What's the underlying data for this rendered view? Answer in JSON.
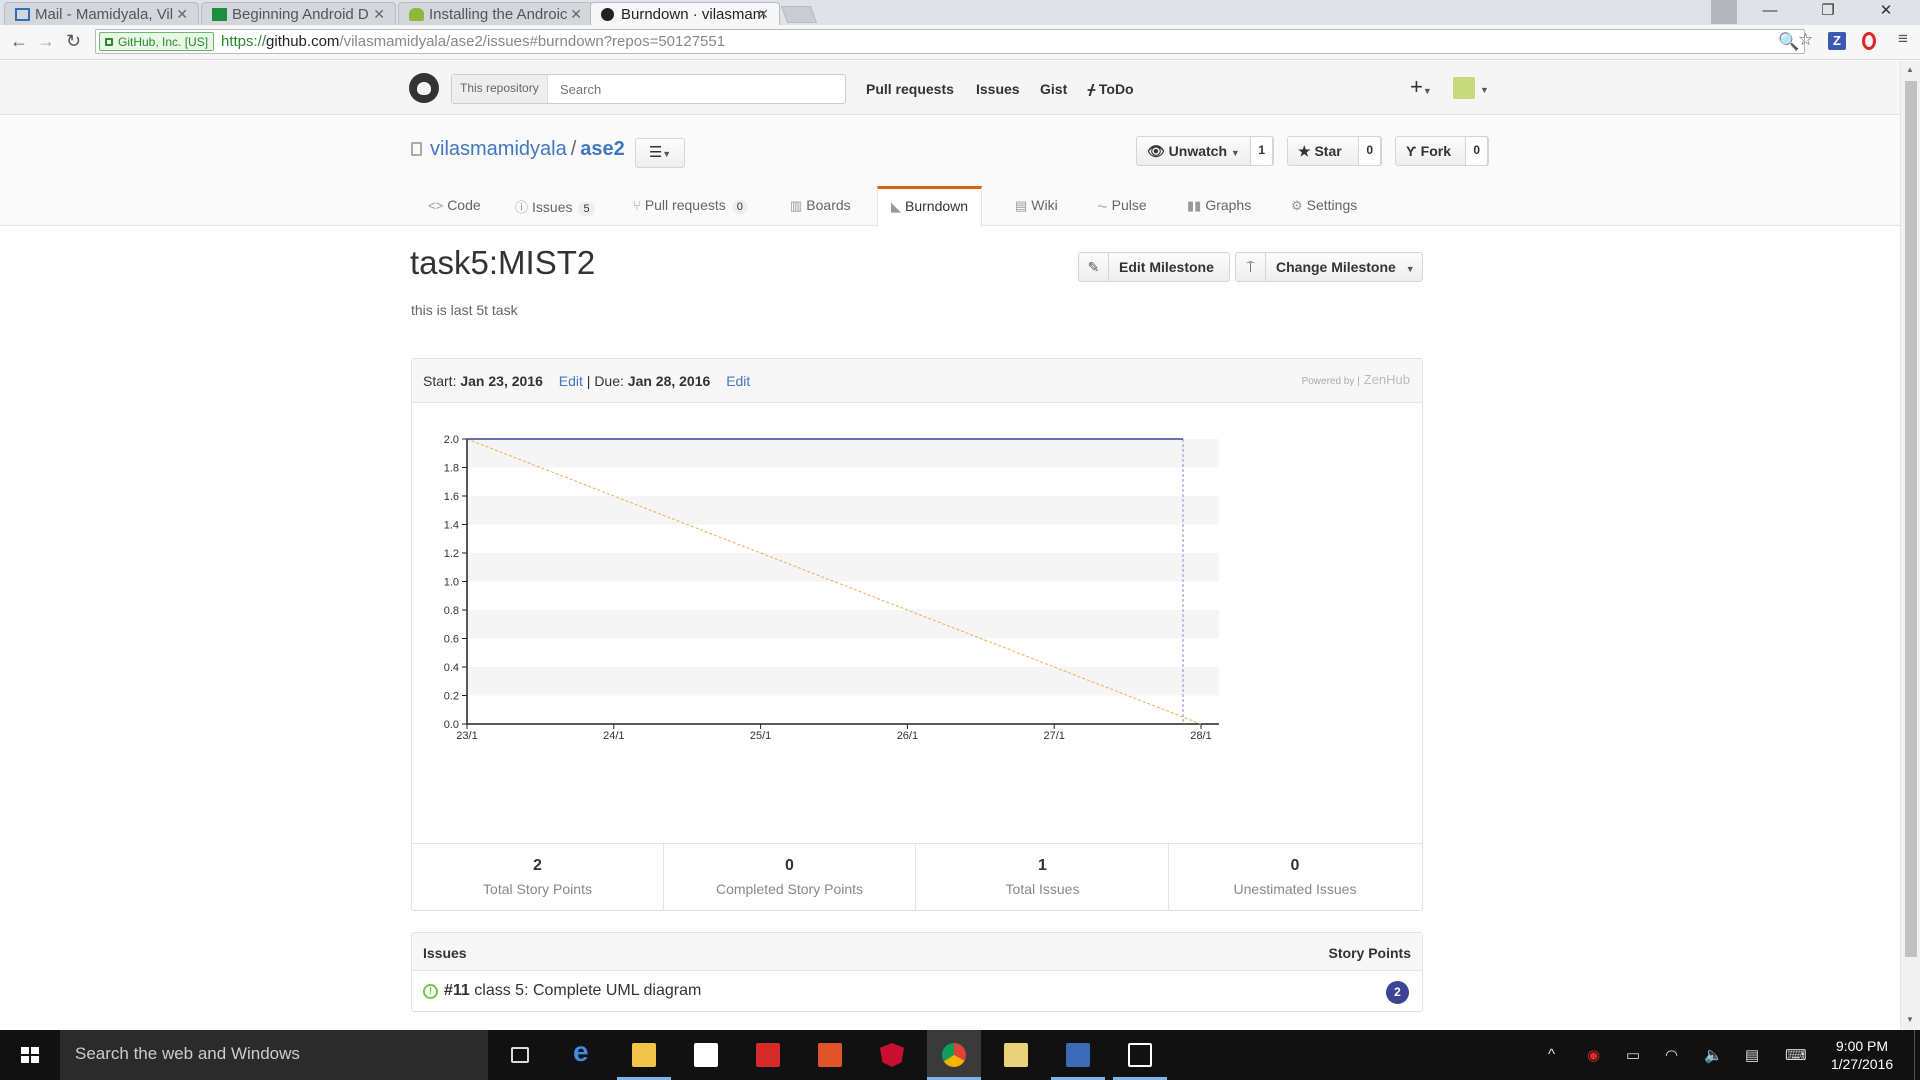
{
  "browser": {
    "tabs": [
      {
        "title": "Mail - Mamidyala, Vil",
        "active": false
      },
      {
        "title": "Beginning Android D",
        "active": false
      },
      {
        "title": "Installing the Androic",
        "active": false
      },
      {
        "title": "Burndown · vilasmam",
        "active": true
      }
    ],
    "url": {
      "ev_label": "GitHub, Inc. [US]",
      "scheme": "https://",
      "host": "github.com",
      "rest": "/vilasmamidyala/ase2/issues#burndown?repos=50127551"
    }
  },
  "github": {
    "search_scope": "This repository",
    "search_placeholder": "Search",
    "nav": [
      "Pull requests",
      "Issues",
      "Gist",
      "ToDo"
    ],
    "repo": {
      "owner": "vilasmamidyala",
      "separator": "/",
      "name": "ase2"
    },
    "actions": {
      "watch": {
        "label": "Unwatch",
        "count": "1"
      },
      "star": {
        "label": "Star",
        "count": "0"
      },
      "fork": {
        "label": "Fork",
        "count": "0"
      }
    },
    "tabs": [
      {
        "label": "Code",
        "counter": ""
      },
      {
        "label": "Issues",
        "counter": "5"
      },
      {
        "label": "Pull requests",
        "counter": "0"
      },
      {
        "label": "Boards",
        "counter": ""
      },
      {
        "label": "Burndown",
        "counter": ""
      },
      {
        "label": "Wiki",
        "counter": ""
      },
      {
        "label": "Pulse",
        "counter": ""
      },
      {
        "label": "Graphs",
        "counter": ""
      },
      {
        "label": "Settings",
        "counter": ""
      }
    ],
    "selected_tab": "Burndown"
  },
  "milestone": {
    "title": "task5:MIST2",
    "description": "this is last 5t task",
    "edit_button": "Edit Milestone",
    "change_button": "Change Milestone",
    "start_label": "Start:",
    "start_date": "Jan 23, 2016",
    "edit_link": "Edit",
    "divider": "|",
    "due_label": "Due:",
    "due_date": "Jan 28, 2016",
    "powered_by": "Powered by |",
    "powered_brand": "ZenHub"
  },
  "chart_data": {
    "type": "line",
    "title": "",
    "xlabel": "",
    "ylabel": "",
    "x": [
      "23/1",
      "24/1",
      "25/1",
      "26/1",
      "27/1",
      "28/1"
    ],
    "ylim": [
      0,
      2
    ],
    "yticks": [
      "0.0",
      "0.2",
      "0.4",
      "0.6",
      "0.8",
      "1.0",
      "1.2",
      "1.4",
      "1.6",
      "1.8",
      "2.0"
    ],
    "series": [
      {
        "kind": "ideal",
        "color": "#f0ad4e",
        "dashed": true,
        "points": [
          [
            "23/1",
            2.0
          ],
          [
            "28/1",
            0.0
          ]
        ]
      },
      {
        "kind": "remaining",
        "color": "#3c4493",
        "dashed": false,
        "points": [
          [
            "23/1",
            2.0
          ],
          [
            "28/1",
            2.0
          ]
        ]
      }
    ],
    "today_marker": "28/1",
    "grid": "alternating horizontal bands",
    "legend": "none"
  },
  "stats": [
    {
      "value": "2",
      "label": "Total Story Points"
    },
    {
      "value": "0",
      "label": "Completed Story Points"
    },
    {
      "value": "1",
      "label": "Total Issues"
    },
    {
      "value": "0",
      "label": "Unestimated Issues"
    }
  ],
  "issues": {
    "header_left": "Issues",
    "header_right": "Story Points",
    "rows": [
      {
        "number": "#11",
        "title": "class 5: Complete UML diagram",
        "points": "2"
      }
    ]
  },
  "taskbar": {
    "search_placeholder": "Search the web and Windows",
    "time": "9:00 PM",
    "date": "1/27/2016"
  }
}
